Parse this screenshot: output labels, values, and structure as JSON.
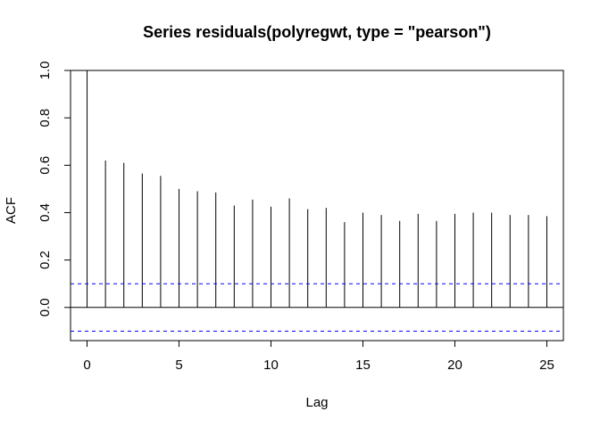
{
  "chart_data": {
    "type": "bar",
    "title": "Series  residuals(polyregwt, type = \"pearson\")",
    "xlabel": "Lag",
    "ylabel": "ACF",
    "xlim": [
      -0.9,
      25.9
    ],
    "ylim": [
      -0.14,
      1.0
    ],
    "x_ticks": [
      0,
      5,
      10,
      15,
      20,
      25
    ],
    "y_ticks": [
      0.0,
      0.2,
      0.4,
      0.6,
      0.8,
      1.0
    ],
    "x_tick_labels": [
      "0",
      "5",
      "10",
      "15",
      "20",
      "25"
    ],
    "y_tick_labels": [
      "0.0",
      "0.2",
      "0.4",
      "0.6",
      "0.8",
      "1.0"
    ],
    "lags": [
      0,
      1,
      2,
      3,
      4,
      5,
      6,
      7,
      8,
      9,
      10,
      11,
      12,
      13,
      14,
      15,
      16,
      17,
      18,
      19,
      20,
      21,
      22,
      23,
      24,
      25
    ],
    "acf": [
      1.0,
      0.62,
      0.61,
      0.565,
      0.555,
      0.5,
      0.49,
      0.485,
      0.43,
      0.455,
      0.425,
      0.46,
      0.415,
      0.42,
      0.36,
      0.4,
      0.39,
      0.365,
      0.395,
      0.365,
      0.395,
      0.4,
      0.4,
      0.39,
      0.39,
      0.385
    ],
    "confidence_bound": 0.1,
    "zero_line": 0,
    "colors": {
      "bars": "#000000",
      "confidence": "#0000ff",
      "frame": "#000000"
    },
    "grid": false
  }
}
